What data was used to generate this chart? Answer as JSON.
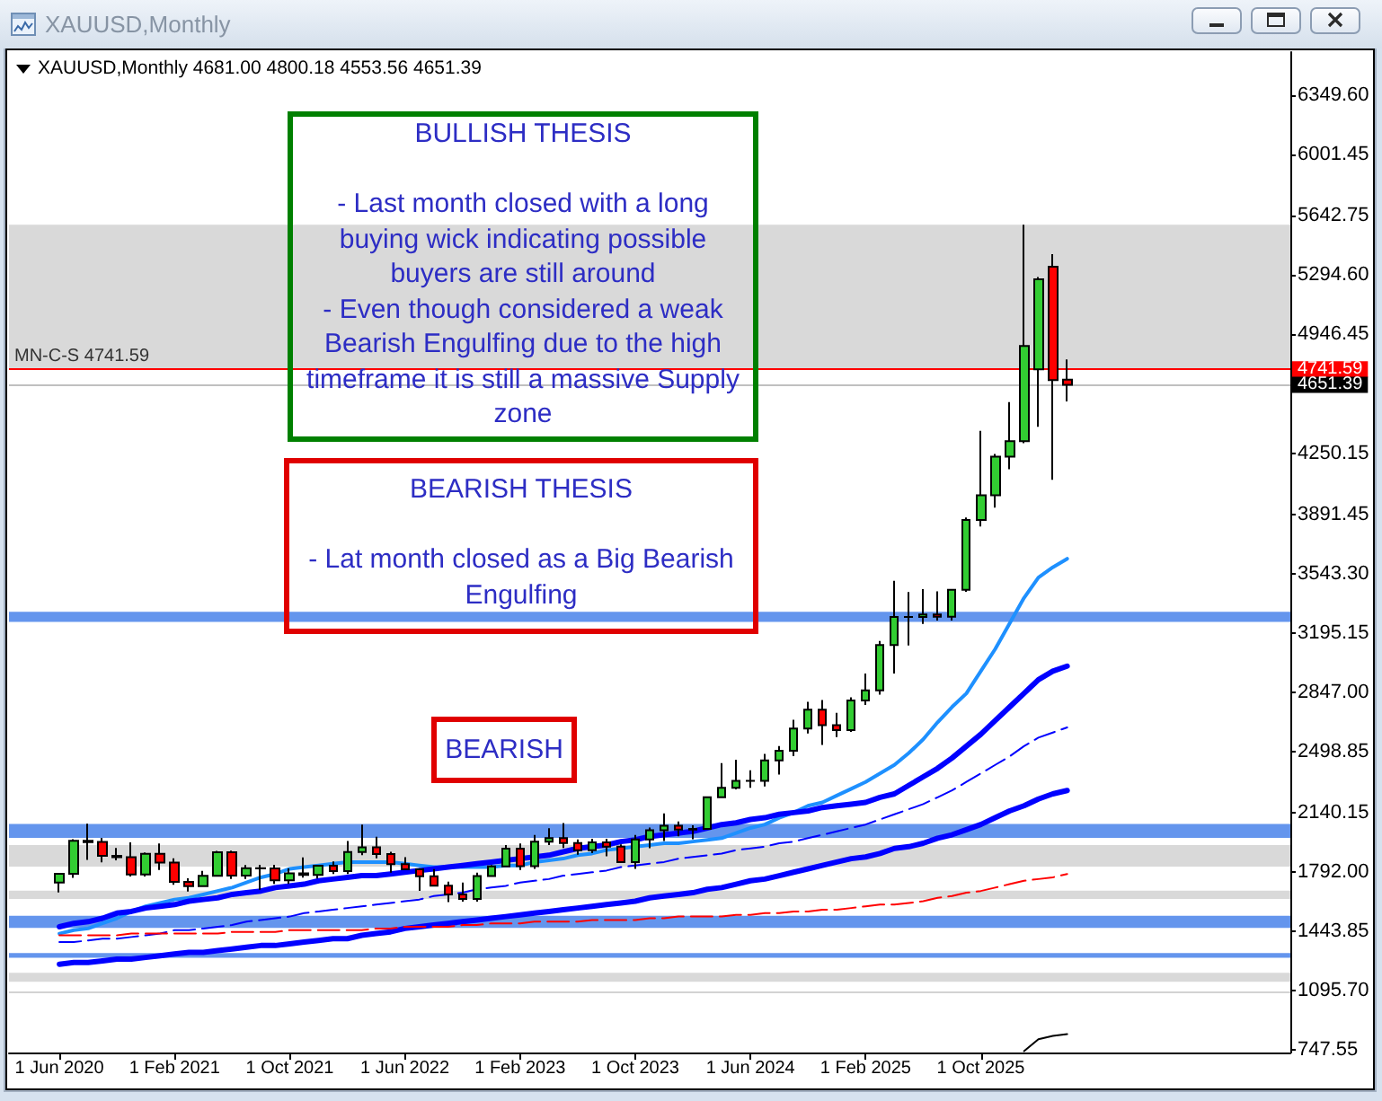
{
  "chart_data": {
    "type": "candlestick",
    "title": "XAUUSD,Monthly",
    "subtitle": "XAUUSD,Monthly 4681.00 4800.18 4553.56 4651.39",
    "categories": [
      "1 Jun 2020",
      null,
      null,
      null,
      null,
      null,
      null,
      null,
      "1 Feb 2021",
      null,
      null,
      null,
      null,
      null,
      null,
      null,
      "1 Oct 2021",
      null,
      null,
      null,
      null,
      null,
      null,
      null,
      "1 Jun 2022",
      null,
      null,
      null,
      null,
      null,
      null,
      null,
      "1 Feb 2023",
      null,
      null,
      null,
      null,
      null,
      null,
      null,
      "1 Oct 2023",
      null,
      null,
      null,
      null,
      null,
      null,
      null,
      "1 Jun 2024",
      null,
      null,
      null,
      null,
      null,
      null,
      null,
      "1 Feb 2025",
      null,
      null,
      null,
      null,
      null,
      null,
      null,
      "1 Oct 2025",
      null,
      null,
      null,
      null,
      null,
      null
    ],
    "ohlc": [
      [
        1730,
        1785,
        1671,
        1781
      ],
      [
        1781,
        1984,
        1757,
        1975
      ],
      [
        1975,
        2075,
        1863,
        1967
      ],
      [
        1968,
        1992,
        1848,
        1886
      ],
      [
        1886,
        1933,
        1860,
        1879
      ],
      [
        1879,
        1966,
        1765,
        1777
      ],
      [
        1777,
        1906,
        1765,
        1898
      ],
      [
        1898,
        1959,
        1803,
        1847
      ],
      [
        1847,
        1872,
        1717,
        1734
      ],
      [
        1734,
        1755,
        1677,
        1708
      ],
      [
        1708,
        1798,
        1705,
        1769
      ],
      [
        1769,
        1916,
        1766,
        1907
      ],
      [
        1907,
        1917,
        1750,
        1770
      ],
      [
        1770,
        1833,
        1751,
        1814
      ],
      [
        1814,
        1834,
        1687,
        1813
      ],
      [
        1813,
        1834,
        1721,
        1743
      ],
      [
        1743,
        1813,
        1722,
        1783
      ],
      [
        1783,
        1877,
        1759,
        1774
      ],
      [
        1774,
        1831,
        1753,
        1829
      ],
      [
        1829,
        1853,
        1780,
        1797
      ],
      [
        1797,
        1974,
        1780,
        1909
      ],
      [
        1909,
        2070,
        1890,
        1937
      ],
      [
        1937,
        1998,
        1872,
        1897
      ],
      [
        1897,
        1910,
        1787,
        1837
      ],
      [
        1837,
        1879,
        1805,
        1807
      ],
      [
        1807,
        1814,
        1681,
        1766
      ],
      [
        1766,
        1808,
        1709,
        1711
      ],
      [
        1711,
        1735,
        1615,
        1660
      ],
      [
        1660,
        1730,
        1617,
        1633
      ],
      [
        1633,
        1787,
        1617,
        1768
      ],
      [
        1768,
        1833,
        1765,
        1824
      ],
      [
        1824,
        1949,
        1823,
        1928
      ],
      [
        1928,
        1959,
        1804,
        1826
      ],
      [
        1826,
        2009,
        1810,
        1969
      ],
      [
        1969,
        2048,
        1949,
        1990
      ],
      [
        1990,
        2079,
        1932,
        1962
      ],
      [
        1962,
        1983,
        1893,
        1919
      ],
      [
        1919,
        1987,
        1902,
        1965
      ],
      [
        1965,
        1987,
        1884,
        1940
      ],
      [
        1940,
        1953,
        1848,
        1849
      ],
      [
        1849,
        2009,
        1810,
        1983
      ],
      [
        1983,
        2052,
        1931,
        2036
      ],
      [
        2036,
        2135,
        1973,
        2063
      ],
      [
        2063,
        2088,
        2001,
        2040
      ],
      [
        2040,
        2065,
        1984,
        2044
      ],
      [
        2044,
        2236,
        2039,
        2230
      ],
      [
        2230,
        2431,
        2228,
        2286
      ],
      [
        2286,
        2450,
        2277,
        2327
      ],
      [
        2327,
        2388,
        2286,
        2326
      ],
      [
        2326,
        2484,
        2294,
        2447
      ],
      [
        2447,
        2531,
        2364,
        2503
      ],
      [
        2503,
        2685,
        2472,
        2634
      ],
      [
        2634,
        2790,
        2604,
        2744
      ],
      [
        2744,
        2801,
        2537,
        2653
      ],
      [
        2653,
        2726,
        2583,
        2624
      ],
      [
        2624,
        2817,
        2614,
        2798
      ],
      [
        2798,
        2956,
        2772,
        2857
      ],
      [
        2857,
        3148,
        2833,
        3124
      ],
      [
        3124,
        3500,
        2957,
        3288
      ],
      [
        3288,
        3435,
        3121,
        3289
      ],
      [
        3289,
        3452,
        3247,
        3303
      ],
      [
        3303,
        3439,
        3268,
        3290
      ],
      [
        3290,
        3453,
        3268,
        3448
      ],
      [
        3448,
        3872,
        3436,
        3858
      ],
      [
        3858,
        4381,
        3820,
        4003
      ],
      [
        4003,
        4245,
        3930,
        4230
      ],
      [
        4230,
        4550,
        4155,
        4320
      ],
      [
        4320,
        5590,
        4309,
        4879
      ],
      [
        4742,
        5284,
        4404,
        5270
      ],
      [
        5344,
        5418,
        4094,
        4679
      ],
      [
        4681.0,
        4800.18,
        4553.56,
        4651.39
      ]
    ],
    "colors": [
      "#32cd32",
      "#32cd32",
      "#ff0000",
      "#ff0000",
      "#ff0000",
      "#ff0000",
      "#32cd32",
      "#ff0000",
      "#ff0000",
      "#ff0000",
      "#32cd32",
      "#32cd32",
      "#ff0000",
      "#32cd32",
      "#ff0000",
      "#ff0000",
      "#32cd32",
      "#ff0000",
      "#32cd32",
      "#ff0000",
      "#32cd32",
      "#32cd32",
      "#ff0000",
      "#ff0000",
      "#ff0000",
      "#ff0000",
      "#ff0000",
      "#ff0000",
      "#ff0000",
      "#32cd32",
      "#32cd32",
      "#32cd32",
      "#ff0000",
      "#32cd32",
      "#32cd32",
      "#ff0000",
      "#ff0000",
      "#32cd32",
      "#ff0000",
      "#ff0000",
      "#32cd32",
      "#32cd32",
      "#32cd32",
      "#ff0000",
      "#32cd32",
      "#32cd32",
      "#32cd32",
      "#32cd32",
      "#ff0000",
      "#32cd32",
      "#32cd32",
      "#32cd32",
      "#32cd32",
      "#ff0000",
      "#ff0000",
      "#32cd32",
      "#32cd32",
      "#32cd32",
      "#32cd32",
      "#32cd32",
      "#32cd32",
      "#ff0000",
      "#32cd32",
      "#32cd32",
      "#32cd32",
      "#32cd32",
      "#32cd32",
      "#32cd32",
      "#32cd32",
      "#ff0000",
      "#ff0000"
    ],
    "series": [
      {
        "type": "line",
        "color": "#1e90ff",
        "line_style": "solid",
        "values": [
          1430,
          1450,
          1460,
          1490,
          1520,
          1560,
          1590,
          1610,
          1630,
          1640,
          1660,
          1680,
          1700,
          1730,
          1760,
          1780,
          1810,
          1820,
          1830,
          1840,
          1850,
          1850,
          1850,
          1850,
          1840,
          1830,
          1820,
          1820,
          1820,
          1820,
          1820,
          1830,
          1830,
          1850,
          1860,
          1870,
          1890,
          1900,
          1920,
          1930,
          1940,
          1950,
          1960,
          1960,
          1970,
          1980,
          1990,
          2020,
          2050,
          2070,
          2110,
          2140,
          2180,
          2200,
          2240,
          2280,
          2320,
          2370,
          2420,
          2490,
          2570,
          2670,
          2760,
          2840,
          2970,
          3100,
          3250,
          3400,
          3520,
          3580,
          3630
        ]
      },
      {
        "type": "line",
        "color": "#0000ff",
        "line_style": "solid",
        "values": [
          1470,
          1490,
          1500,
          1520,
          1550,
          1560,
          1580,
          1590,
          1600,
          1620,
          1630,
          1640,
          1660,
          1670,
          1680,
          1700,
          1710,
          1720,
          1740,
          1750,
          1760,
          1770,
          1770,
          1780,
          1790,
          1800,
          1810,
          1820,
          1830,
          1840,
          1850,
          1860,
          1870,
          1880,
          1890,
          1910,
          1930,
          1940,
          1950,
          1970,
          1980,
          2000,
          2010,
          2020,
          2030,
          2050,
          2070,
          2080,
          2100,
          2110,
          2130,
          2140,
          2150,
          2170,
          2180,
          2190,
          2200,
          2230,
          2250,
          2300,
          2350,
          2400,
          2460,
          2530,
          2600,
          2680,
          2760,
          2840,
          2920,
          2970,
          3000
        ]
      },
      {
        "type": "line",
        "color": "#0000ff",
        "line_style": "dashed",
        "values": [
          1380,
          1380,
          1390,
          1400,
          1400,
          1410,
          1420,
          1430,
          1450,
          1450,
          1460,
          1470,
          1480,
          1500,
          1510,
          1520,
          1530,
          1550,
          1560,
          1570,
          1580,
          1590,
          1600,
          1610,
          1620,
          1630,
          1650,
          1660,
          1670,
          1690,
          1700,
          1710,
          1730,
          1740,
          1750,
          1770,
          1780,
          1790,
          1800,
          1820,
          1830,
          1840,
          1850,
          1870,
          1880,
          1890,
          1900,
          1920,
          1930,
          1940,
          1960,
          1970,
          1990,
          2010,
          2030,
          2050,
          2070,
          2100,
          2130,
          2160,
          2190,
          2230,
          2270,
          2320,
          2370,
          2420,
          2470,
          2530,
          2580,
          2610,
          2640
        ]
      },
      {
        "type": "line",
        "color": "#0000ff",
        "line_style": "solid",
        "values": [
          1250,
          1260,
          1260,
          1270,
          1280,
          1280,
          1290,
          1300,
          1310,
          1320,
          1320,
          1330,
          1340,
          1350,
          1360,
          1360,
          1370,
          1380,
          1390,
          1400,
          1400,
          1420,
          1430,
          1440,
          1460,
          1470,
          1480,
          1490,
          1500,
          1510,
          1520,
          1530,
          1540,
          1550,
          1560,
          1570,
          1580,
          1590,
          1600,
          1610,
          1620,
          1640,
          1650,
          1660,
          1670,
          1690,
          1700,
          1720,
          1740,
          1750,
          1770,
          1790,
          1810,
          1830,
          1850,
          1870,
          1880,
          1900,
          1930,
          1940,
          1960,
          1990,
          2010,
          2040,
          2070,
          2110,
          2150,
          2180,
          2220,
          2250,
          2270
        ]
      },
      {
        "type": "line",
        "color": "#ff0000",
        "line_style": "dashed",
        "values": [
          1420,
          1420,
          1420,
          1420,
          1420,
          1430,
          1430,
          1430,
          1430,
          1430,
          1430,
          1430,
          1440,
          1440,
          1440,
          1440,
          1450,
          1450,
          1450,
          1450,
          1450,
          1450,
          1460,
          1460,
          1470,
          1470,
          1470,
          1470,
          1480,
          1480,
          1490,
          1490,
          1490,
          1500,
          1500,
          1500,
          1500,
          1510,
          1510,
          1510,
          1510,
          1520,
          1520,
          1530,
          1530,
          1530,
          1530,
          1540,
          1540,
          1550,
          1550,
          1560,
          1560,
          1570,
          1570,
          1580,
          1590,
          1600,
          1600,
          1610,
          1620,
          1640,
          1650,
          1670,
          1680,
          1700,
          1720,
          1740,
          1750,
          1760,
          1780
        ]
      },
      {
        "type": "line",
        "color": "#000000",
        "line_style": "solid",
        "values": [
          null,
          null,
          null,
          null,
          null,
          null,
          null,
          null,
          null,
          null,
          null,
          null,
          null,
          null,
          null,
          null,
          null,
          null,
          null,
          null,
          null,
          null,
          null,
          null,
          null,
          null,
          null,
          null,
          null,
          null,
          null,
          null,
          null,
          null,
          null,
          null,
          null,
          null,
          null,
          null,
          null,
          null,
          null,
          null,
          null,
          null,
          null,
          null,
          null,
          null,
          null,
          null,
          null,
          null,
          null,
          null,
          null,
          null,
          null,
          null,
          null,
          null,
          null,
          null,
          null,
          null,
          null,
          740,
          810,
          830,
          840
        ]
      }
    ],
    "ylim": [
      732,
      6604
    ],
    "yticks": [
      747.55,
      {
        "value": 1095.7,
        "label": "1095.70"
      },
      1443.85,
      {
        "value": 1792,
        "label": "1792.00"
      },
      2140.15,
      2498.85,
      {
        "value": 2847,
        "label": "2847.00"
      },
      3195.15,
      {
        "value": 3543.3,
        "label": "3543.30"
      },
      3891.45,
      4250.15,
      4946.45,
      {
        "value": 5294.6,
        "label": "5294.60"
      },
      5642.75,
      6001.45,
      {
        "value": 6349.6,
        "label": "6349.60"
      }
    ],
    "bands": [
      {
        "axis": "y",
        "from": 1464,
        "to": 1534,
        "color": "#6495ed"
      },
      {
        "axis": "y",
        "from": 1288,
        "to": 1316,
        "color": "#6495ed"
      },
      {
        "axis": "y",
        "from": 1147,
        "to": 1200,
        "color": "#d9d9d9"
      },
      {
        "axis": "y",
        "from": 1633,
        "to": 1682,
        "color": "#d9d9d9"
      },
      {
        "axis": "y",
        "from": 1823,
        "to": 1949,
        "color": "#d9d9d9"
      },
      {
        "axis": "y",
        "from": 1992,
        "to": 2073,
        "color": "#6495ed"
      },
      {
        "axis": "y",
        "from": 3259,
        "to": 3319,
        "color": "#6495ed"
      },
      {
        "axis": "y",
        "from": 4740,
        "to": 5590,
        "color": "#d9d9d9"
      }
    ],
    "ref_lines": [
      {
        "axis": "y",
        "value": 4741.59,
        "label": "4741.59",
        "color": "#ff0000"
      },
      {
        "axis": "y",
        "value": 4651.39,
        "label": "4651.39",
        "color": "#c0c0c0"
      },
      {
        "axis": "y",
        "value": 1083,
        "color": "#d3d3d3"
      }
    ],
    "annotations": [
      "BULLISH THESIS\n\n- Last month closed with a long\nbuying wick indicating possible\nbuyers are still around\n- Even though considered a weak\nBearish Engulfing due to the high\ntimeframe it is still a massive Supply\nzone",
      "BEARISH THESIS\n\n- Lat month closed as a Big Bearish\nEngulfing",
      "BEARISH",
      {
        "text": "MN-C-S 4741.59",
        "y": 4741.59
      }
    ]
  }
}
